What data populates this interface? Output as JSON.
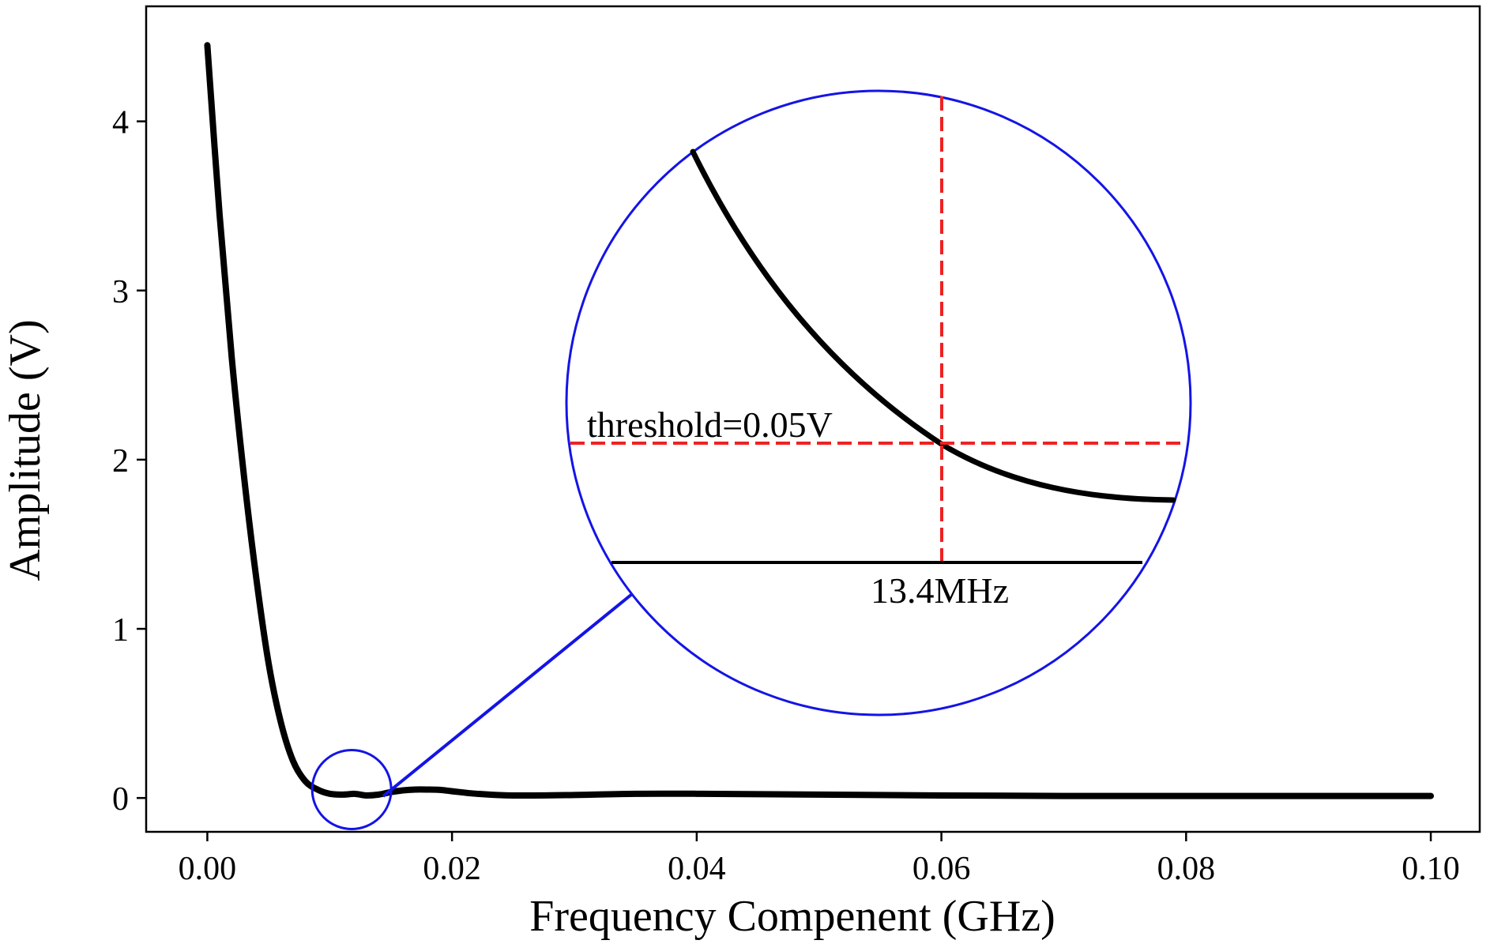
{
  "chart_data": {
    "type": "line",
    "title": "",
    "xlabel": "Frequency Compenent (GHz)",
    "ylabel": "Amplitude (V)",
    "xlim": [
      -0.005,
      0.104
    ],
    "ylim": [
      -0.2,
      4.68
    ],
    "xticks": [
      0.0,
      0.02,
      0.04,
      0.06,
      0.08,
      0.1
    ],
    "xtick_labels": [
      "0.00",
      "0.02",
      "0.04",
      "0.06",
      "0.08",
      "0.10"
    ],
    "yticks": [
      0,
      1,
      2,
      3,
      4
    ],
    "ytick_labels": [
      "0",
      "1",
      "2",
      "3",
      "4"
    ],
    "grid": false,
    "legend": "none",
    "series": [
      {
        "color": "#000000",
        "x": [
          0.0,
          0.001,
          0.002,
          0.003,
          0.004,
          0.005,
          0.006,
          0.007,
          0.008,
          0.009,
          0.01,
          0.011,
          0.0115,
          0.012,
          0.0125,
          0.013,
          0.014,
          0.015,
          0.016,
          0.017,
          0.018,
          0.019,
          0.02,
          0.022,
          0.025,
          0.03,
          0.035,
          0.04,
          0.05,
          0.06,
          0.07,
          0.08,
          0.09,
          0.1
        ],
        "y": [
          4.45,
          3.45,
          2.6,
          1.9,
          1.3,
          0.8,
          0.45,
          0.22,
          0.1,
          0.05,
          0.025,
          0.02,
          0.022,
          0.025,
          0.02,
          0.015,
          0.02,
          0.035,
          0.045,
          0.05,
          0.05,
          0.048,
          0.04,
          0.025,
          0.015,
          0.018,
          0.025,
          0.025,
          0.02,
          0.015,
          0.012,
          0.012,
          0.012,
          0.012
        ]
      }
    ],
    "annotations": {
      "threshold_label": "threshold=0.05V",
      "frequency_label": "13.4MHz",
      "zoom_center": [
        0.0118,
        0.05
      ]
    },
    "colors": {
      "zoom_circle": "#1414e6",
      "threshold_lines": "#ee2222",
      "curve": "#000000"
    }
  }
}
